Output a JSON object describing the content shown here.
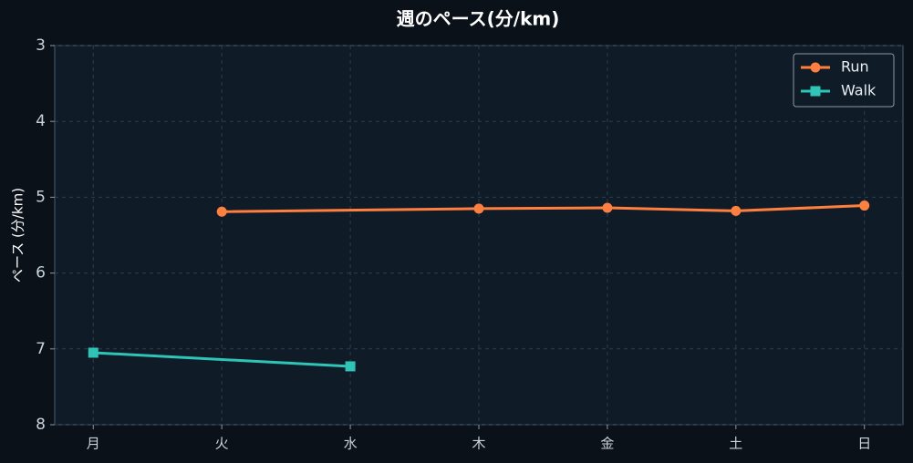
{
  "chart_data": {
    "type": "line",
    "title": "週のペース(分/km)",
    "y_label": "ペース (分/km)",
    "categories": [
      "月",
      "火",
      "水",
      "木",
      "金",
      "土",
      "日"
    ],
    "series": [
      {
        "name": "Run",
        "color": "#ff7f3f",
        "marker": "circle",
        "values": [
          null,
          5.19,
          null,
          5.15,
          5.14,
          5.18,
          5.11
        ]
      },
      {
        "name": "Walk",
        "color": "#2ec4b6",
        "marker": "square",
        "values": [
          7.05,
          null,
          7.23,
          null,
          null,
          null,
          null
        ]
      }
    ],
    "ylim": [
      8,
      3
    ],
    "yticks": [
      3,
      4,
      5,
      6,
      7,
      8
    ],
    "y_inverted": true,
    "grid": true,
    "connect_gaps": true,
    "legend": "upper right"
  }
}
